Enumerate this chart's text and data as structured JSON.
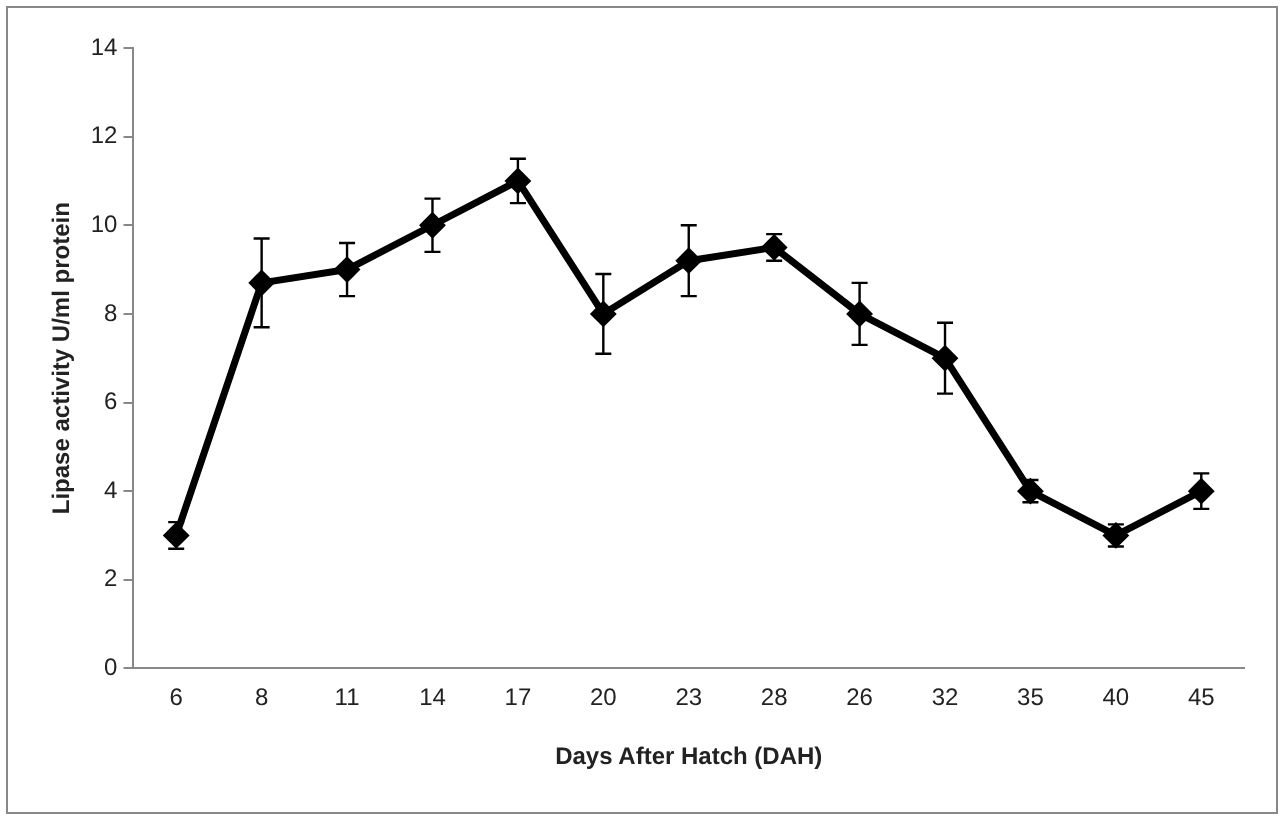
{
  "chart_data": {
    "type": "line",
    "xlabel": "Days After Hatch (DAH)",
    "ylabel": "Lipase activity U/ml protein",
    "categories": [
      "6",
      "8",
      "11",
      "14",
      "17",
      "20",
      "23",
      "28",
      "26",
      "32",
      "35",
      "40",
      "45"
    ],
    "series": [
      {
        "color": "#000000",
        "values": [
          3,
          8.7,
          9,
          10,
          11,
          8,
          9.2,
          9.5,
          8,
          7,
          4,
          3,
          4
        ],
        "errors": [
          0.3,
          1,
          0.6,
          0.6,
          0.5,
          0.9,
          0.8,
          0.3,
          0.7,
          0.8,
          0.25,
          0.25,
          0.4
        ]
      }
    ],
    "ylim": [
      0,
      14
    ],
    "yticks": [
      0,
      2,
      4,
      6,
      8,
      10,
      12,
      14
    ],
    "grid": false,
    "legend": false,
    "marker": "diamond",
    "line_style": "solid"
  }
}
